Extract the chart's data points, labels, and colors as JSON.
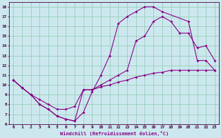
{
  "xlabel": "Windchill (Refroidissement éolien,°C)",
  "background_color": "#cce8ee",
  "grid_color": "#99ccbb",
  "line_color": "#880088",
  "xlim": [
    -0.5,
    23.5
  ],
  "ylim": [
    6,
    18.5
  ],
  "xticks": [
    0,
    1,
    2,
    3,
    4,
    5,
    6,
    7,
    8,
    9,
    10,
    11,
    12,
    13,
    14,
    15,
    16,
    17,
    18,
    19,
    20,
    21,
    22,
    23
  ],
  "yticks": [
    6,
    7,
    8,
    9,
    10,
    11,
    12,
    13,
    14,
    15,
    16,
    17,
    18
  ],
  "line1_x": [
    0,
    1,
    2,
    3,
    4,
    5,
    6,
    7,
    8,
    9,
    10,
    11,
    12,
    13,
    14,
    15,
    16,
    17,
    20,
    21,
    22,
    23
  ],
  "line1_y": [
    10.5,
    9.7,
    9.0,
    8.0,
    7.5,
    6.8,
    6.5,
    6.3,
    7.2,
    9.3,
    11.0,
    13.0,
    16.3,
    17.0,
    17.5,
    18.0,
    18.0,
    17.5,
    16.5,
    12.5,
    12.5,
    11.5
  ],
  "line2_x": [
    0,
    1,
    2,
    3,
    4,
    5,
    6,
    7,
    8,
    9,
    10,
    11,
    12,
    13,
    14,
    15,
    16,
    17,
    18,
    19,
    20,
    21,
    22,
    23
  ],
  "line2_y": [
    10.5,
    9.7,
    9.0,
    8.0,
    7.5,
    6.8,
    6.5,
    6.3,
    9.5,
    9.5,
    10.0,
    10.5,
    11.0,
    11.5,
    14.5,
    15.0,
    16.5,
    17.0,
    16.5,
    15.3,
    15.3,
    13.8,
    14.0,
    12.5
  ],
  "line3_x": [
    0,
    1,
    2,
    3,
    4,
    5,
    6,
    7,
    8,
    9,
    10,
    11,
    12,
    13,
    14,
    15,
    16,
    17,
    18,
    19,
    20,
    21,
    22,
    23
  ],
  "line3_y": [
    10.5,
    9.7,
    9.0,
    8.5,
    8.0,
    7.5,
    7.5,
    7.8,
    9.5,
    9.5,
    9.8,
    10.0,
    10.3,
    10.5,
    10.8,
    11.0,
    11.2,
    11.3,
    11.5,
    11.5,
    11.5,
    11.5,
    11.5,
    11.5
  ]
}
